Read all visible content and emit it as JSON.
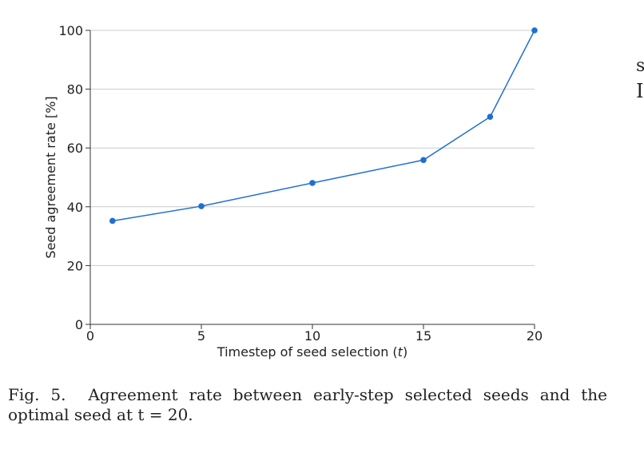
{
  "chart_data": {
    "type": "line",
    "xlabel": "Timestep of seed selection (",
    "xlabel_var": "t",
    "xlabel_end": ")",
    "ylabel": "Seed agreement rate [%]",
    "xlim": [
      0,
      20
    ],
    "ylim": [
      0,
      100
    ],
    "x_ticks": [
      0,
      5,
      10,
      15,
      20
    ],
    "y_ticks": [
      0,
      20,
      40,
      60,
      80,
      100
    ],
    "grid": "y",
    "color": "#1f6fd1",
    "series": [
      {
        "x": [
          1,
          5,
          10,
          15,
          18,
          20
        ],
        "y": [
          35.2,
          40.2,
          48.1,
          55.9,
          70.6,
          100
        ]
      }
    ]
  },
  "caption": {
    "label": "Fig. 5.",
    "text": "Agreement rate between early-step selected seeds and the optimal seed at t = 20."
  },
  "side_fragments": {
    "line1": "s",
    "line2": "I"
  }
}
